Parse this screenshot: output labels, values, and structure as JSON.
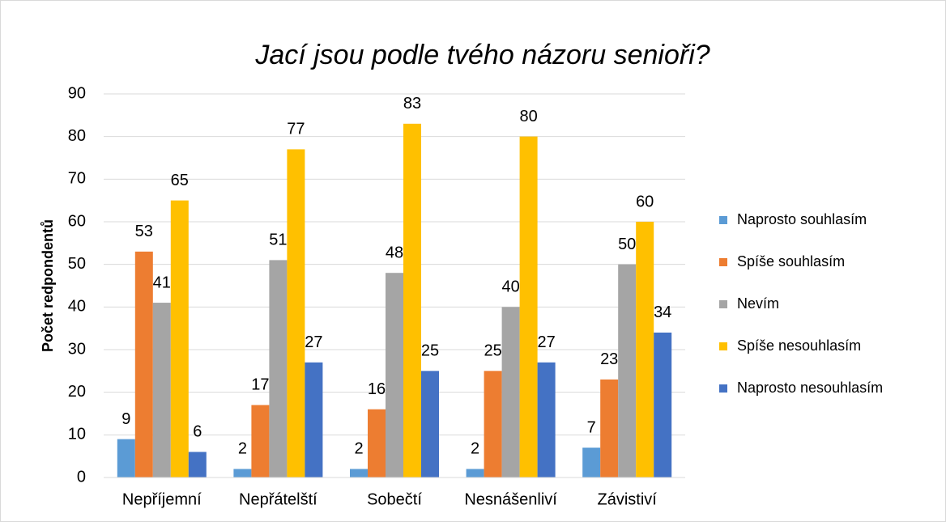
{
  "chart_data": {
    "type": "bar",
    "title": "Jací jsou podle tvého názoru senioři?",
    "y_label": "Počet redpondentů",
    "categories": [
      "Nepříjemní",
      "Nepřátelští",
      "Sobečtí",
      "Nesnášenliví",
      "Závistiví"
    ],
    "series": [
      {
        "name": "Naprosto souhlasím",
        "color": "#5B9BD5",
        "values": [
          9,
          2,
          2,
          2,
          7
        ]
      },
      {
        "name": "Spíše souhlasím",
        "color": "#ED7D31",
        "values": [
          53,
          17,
          16,
          25,
          23
        ]
      },
      {
        "name": "Nevím",
        "color": "#A5A5A5",
        "values": [
          41,
          51,
          48,
          40,
          50
        ]
      },
      {
        "name": "Spíše nesouhlasím",
        "color": "#FFC000",
        "values": [
          65,
          77,
          83,
          80,
          60
        ]
      },
      {
        "name": "Naprosto nesouhlasím",
        "color": "#4472C4",
        "values": [
          6,
          27,
          25,
          27,
          34
        ]
      }
    ],
    "ylim": [
      0,
      90
    ],
    "yticks": [
      0,
      10,
      20,
      30,
      40,
      50,
      60,
      70,
      80,
      90
    ],
    "grid": true,
    "legend": "right"
  }
}
